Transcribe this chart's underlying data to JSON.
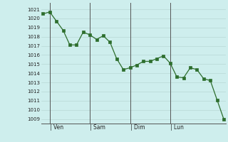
{
  "y_values": [
    1020.5,
    1020.7,
    1019.7,
    1018.7,
    1017.1,
    1017.1,
    1018.5,
    1018.2,
    1017.7,
    1018.1,
    1017.4,
    1015.6,
    1014.4,
    1014.6,
    1014.9,
    1015.3,
    1015.3,
    1015.6,
    1015.9,
    1015.1,
    1013.6,
    1013.5,
    1014.6,
    1014.4,
    1013.4,
    1013.2,
    1011.1,
    1009.0
  ],
  "x_ticks_positions": [
    1,
    7,
    13,
    19
  ],
  "x_tick_labels": [
    "| Ven",
    "| Sam",
    "| Dim",
    "| Lun"
  ],
  "vline_positions": [
    1,
    7,
    13,
    19
  ],
  "ylim": [
    1008.5,
    1021.7
  ],
  "xlim": [
    -0.3,
    27.3
  ],
  "yticks": [
    1009,
    1010,
    1011,
    1012,
    1013,
    1014,
    1015,
    1016,
    1017,
    1018,
    1019,
    1020,
    1021
  ],
  "line_color": "#2d6e2d",
  "marker_color": "#2d6e2d",
  "bg_color": "#ceeeed",
  "grid_major_color": "#b8d8d6",
  "grid_minor_color": "#d4eceb",
  "vline_color": "#555555"
}
